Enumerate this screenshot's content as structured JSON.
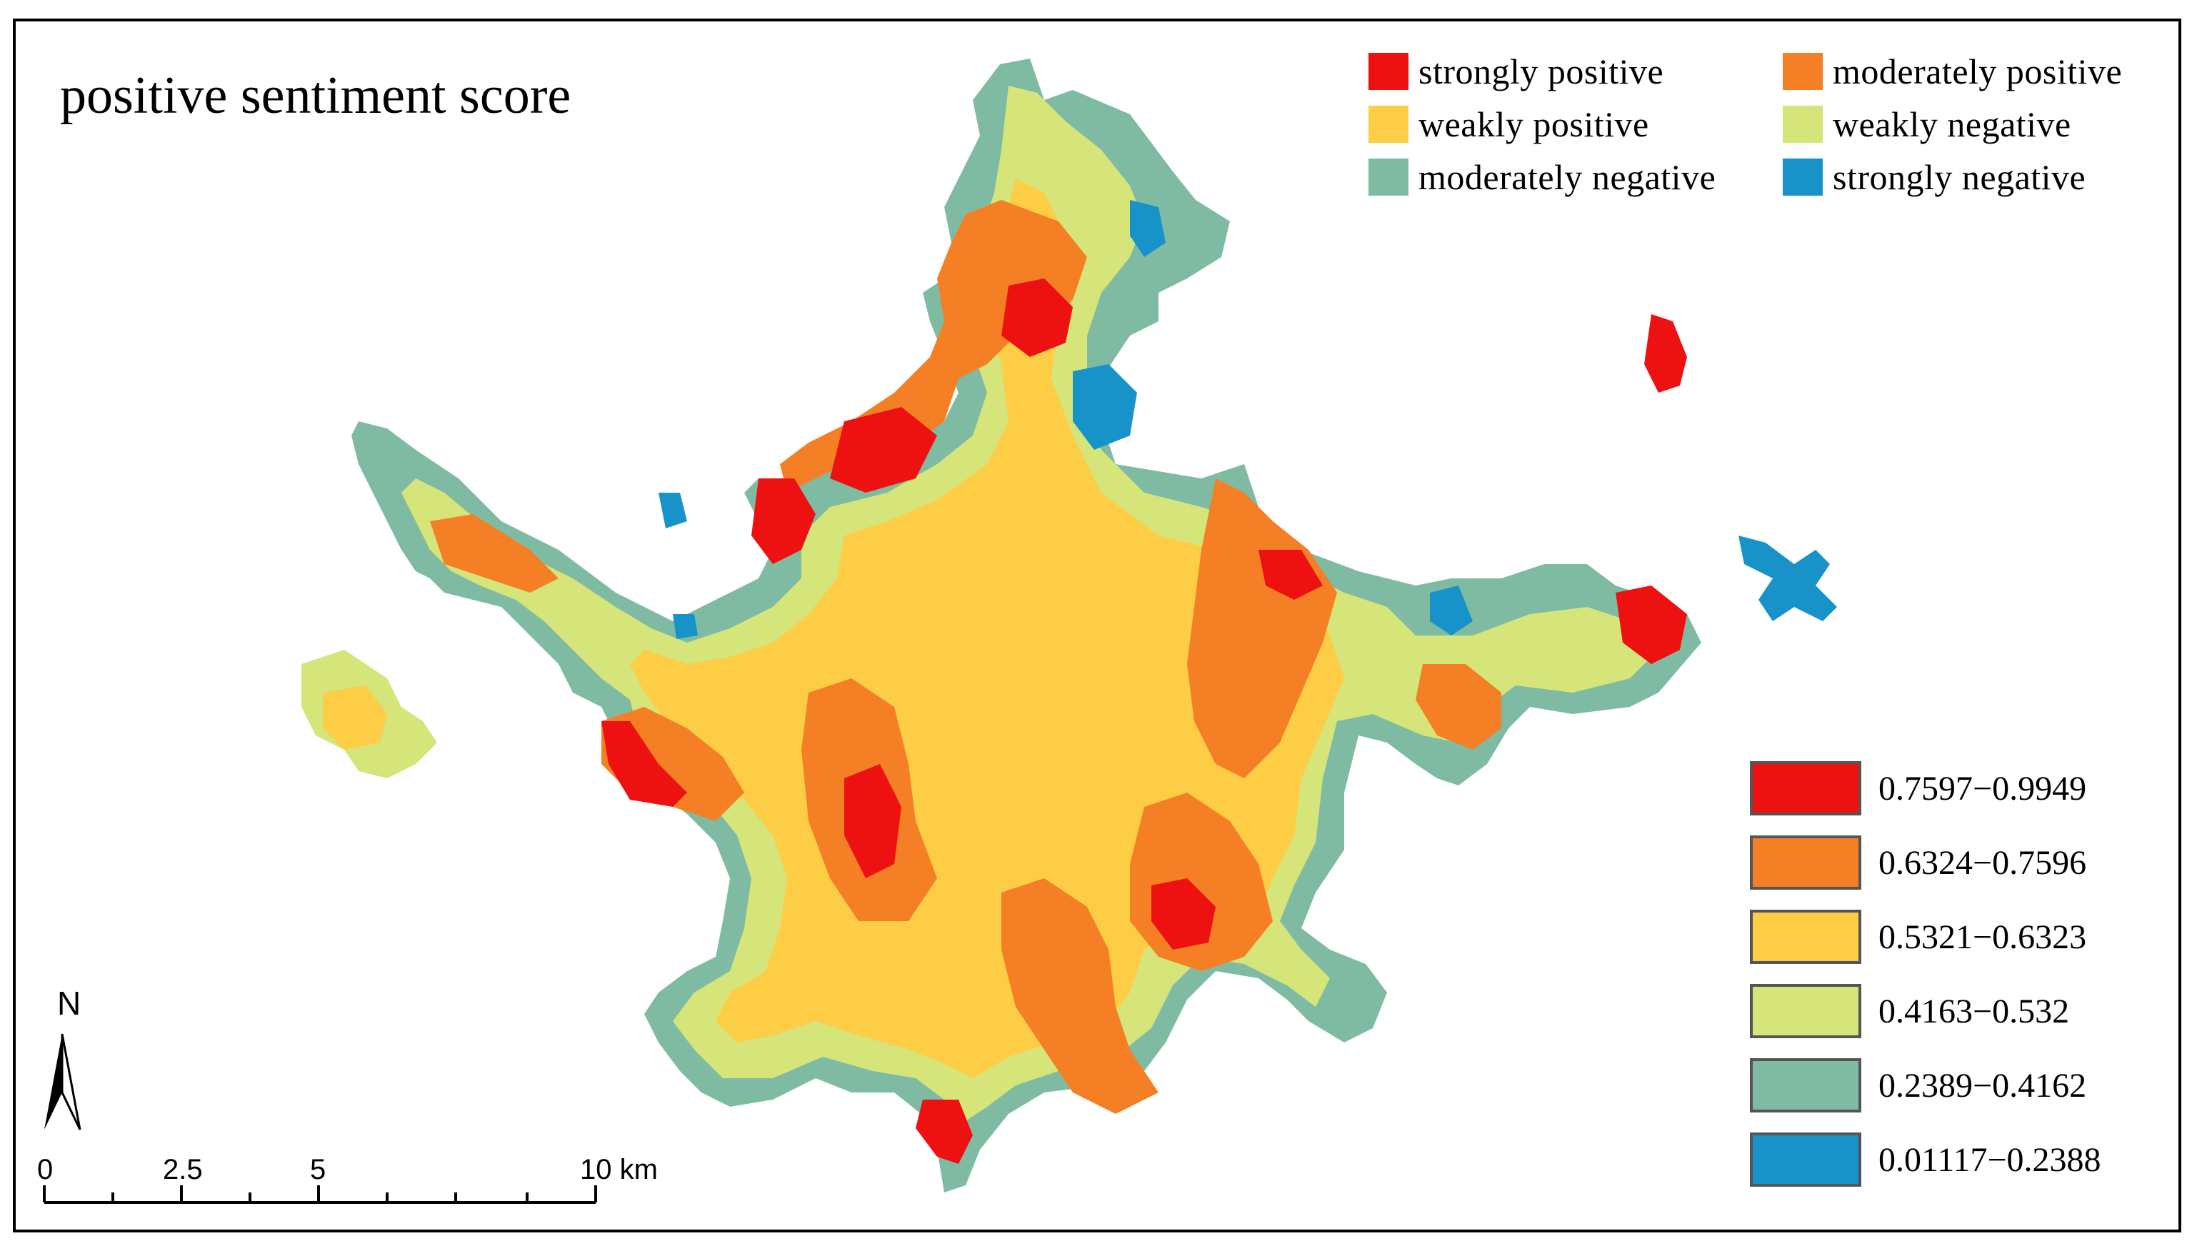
{
  "map": {
    "title": "positive sentiment score"
  },
  "category_legend": {
    "items": [
      {
        "label": "strongly positive",
        "color": "#ee1111"
      },
      {
        "label": "moderately positive",
        "color": "#f57f24"
      },
      {
        "label": "weakly positive",
        "color": "#fdcd45"
      },
      {
        "label": "weakly negative",
        "color": "#d5e57a"
      },
      {
        "label": "moderately negative",
        "color": "#7fbba2"
      },
      {
        "label": "strongly negative",
        "color": "#1793c9"
      }
    ]
  },
  "class_legend": {
    "items": [
      {
        "label": "0.7597−0.9949",
        "color": "#ee1111"
      },
      {
        "label": "0.6324−0.7596",
        "color": "#f57f24"
      },
      {
        "label": "0.5321−0.6323",
        "color": "#fdcd45"
      },
      {
        "label": "0.4163−0.532",
        "color": "#d5e57a"
      },
      {
        "label": "0.2389−0.4162",
        "color": "#7fbba2"
      },
      {
        "label": "0.01117−0.2388",
        "color": "#1793c9"
      }
    ]
  },
  "north_arrow": {
    "label": "N",
    "icon": "north-arrow-icon"
  },
  "scale_bar": {
    "labels": [
      "0",
      "2.5",
      "5",
      "10 km"
    ]
  }
}
